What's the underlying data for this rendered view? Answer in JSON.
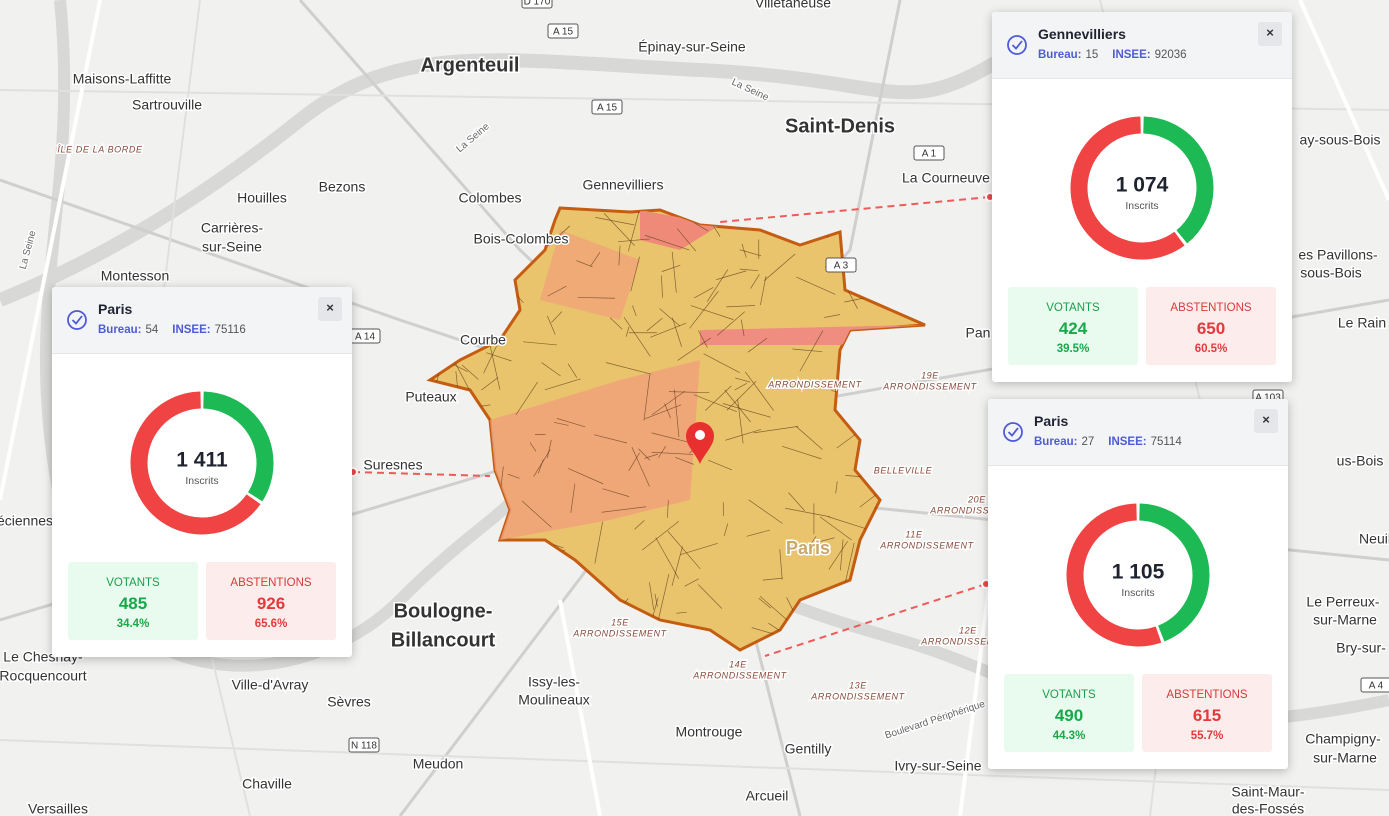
{
  "labels": {
    "bureau": "Bureau:",
    "insee": "INSEE:",
    "inscrits": "Inscrits",
    "votants": "VOTANTS",
    "abstentions": "ABSTENTIONS"
  },
  "popups": [
    {
      "city": "Paris",
      "bureau": "54",
      "insee": "75116",
      "inscrits": {
        "value": 1411,
        "label": "1 411"
      },
      "votants": 485,
      "votants_pct": "34.4%",
      "abstentions": 926,
      "abstentions_pct": "65.6%"
    },
    {
      "city": "Gennevilliers",
      "bureau": "15",
      "insee": "92036",
      "inscrits": {
        "value": 1074,
        "label": "1 074"
      },
      "votants": 424,
      "votants_pct": "39.5%",
      "abstentions": 650,
      "abstentions_pct": "60.5%"
    },
    {
      "city": "Paris",
      "bureau": "27",
      "insee": "75114",
      "inscrits": {
        "value": 1105,
        "label": "1 105"
      },
      "votants": 490,
      "votants_pct": "44.3%",
      "abstentions": 615,
      "abstentions_pct": "55.7%"
    }
  ],
  "map_labels": [
    "Villetaneuse",
    "Argenteuil",
    "Épinay-sur-Seine",
    "Maisons-Laffitte",
    "Sartrouville",
    "ÎLE DE LA BORDE",
    "Saint-Denis",
    "La Courneuve",
    "Houilles",
    "Bezons",
    "Colombes",
    "Gennevilliers",
    "Carrières-",
    "sur-Seine",
    "Bois-Colombes",
    "Montesson",
    "Courbe",
    "Puteaux",
    "Suresnes",
    "Boulogne-",
    "Billancourt",
    "Le Chesnay-",
    "Rocquencourt",
    "Ville-d'Avray",
    "Sèvres",
    "Issy-les-",
    "Moulineaux",
    "Montrouge",
    "Gentilly",
    "Ivry-sur-Seine",
    "Meudon",
    "Chaville",
    "Arcueil",
    "Versailles",
    "Saint-Maur-",
    "des-Fossés",
    "Champigny-",
    "sur-Marne",
    "Le Perreux-",
    "sur-Marne",
    "Bry-sur-",
    "Neuil",
    "Le Rain",
    "es Pavillons-",
    "sous-Bois",
    "ay-sous-Bois",
    "Pan",
    "Paris",
    "us-Bois",
    "éciennes",
    "19E",
    "ARRONDISSEMENT",
    "BELLEVILLE",
    "20E",
    "ARRONDISSEMENT",
    "11E",
    "ARRONDISSEMENT",
    "12E",
    "ARRONDISSEMENT",
    "13E",
    "ARRONDISSEMENT",
    "14E",
    "ARRONDISSEMENT",
    "15E",
    "ARRONDISSEMENT",
    "ARRONDISSEMENT",
    "La Seine",
    "La Seine",
    "La Seine",
    "Boulevard Périphérique"
  ],
  "road_shields": [
    "D 170",
    "A 15",
    "A 15",
    "A 1",
    "A 14",
    "N 118",
    "A 4",
    "A 3",
    "A 103"
  ]
}
